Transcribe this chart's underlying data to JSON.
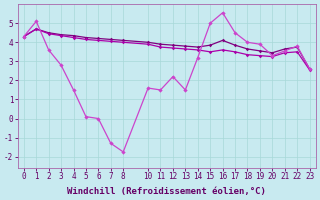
{
  "background_color": "#c8eaf0",
  "grid_color": "#a8d8d8",
  "line_color_upper1": "#800080",
  "line_color_upper2": "#aa00aa",
  "line_color_jagged": "#cc44cc",
  "xlabel": "Windchill (Refroidissement éolien,°C)",
  "xlabel_fontsize": 6.5,
  "tick_fontsize": 5.5,
  "ylim": [
    -2.6,
    6.0
  ],
  "xlim": [
    -0.5,
    23.5
  ],
  "yticks": [
    -2,
    -1,
    0,
    1,
    2,
    3,
    4,
    5
  ],
  "xticks": [
    0,
    1,
    2,
    3,
    4,
    5,
    6,
    7,
    8,
    10,
    11,
    12,
    13,
    14,
    15,
    16,
    17,
    18,
    19,
    20,
    21,
    22,
    23
  ],
  "series1_x": [
    0,
    1,
    2,
    3,
    4,
    5,
    6,
    7,
    8,
    10,
    11,
    12,
    13,
    14,
    15,
    16,
    17,
    18,
    19,
    20,
    21,
    22,
    23
  ],
  "series1_y": [
    4.3,
    4.7,
    4.5,
    4.4,
    4.35,
    4.25,
    4.2,
    4.15,
    4.1,
    4.0,
    3.9,
    3.85,
    3.8,
    3.75,
    3.85,
    4.1,
    3.85,
    3.65,
    3.55,
    3.45,
    3.65,
    3.75,
    2.6
  ],
  "series2_x": [
    0,
    1,
    2,
    3,
    4,
    5,
    6,
    7,
    8,
    10,
    11,
    12,
    13,
    14,
    15,
    16,
    17,
    18,
    19,
    20,
    21,
    22,
    23
  ],
  "series2_y": [
    4.3,
    4.7,
    4.45,
    4.35,
    4.25,
    4.15,
    4.1,
    4.05,
    4.0,
    3.9,
    3.75,
    3.7,
    3.65,
    3.6,
    3.5,
    3.6,
    3.5,
    3.35,
    3.3,
    3.25,
    3.45,
    3.5,
    2.55
  ],
  "series3_x": [
    0,
    1,
    2,
    3,
    4,
    5,
    6,
    7,
    8,
    10,
    11,
    12,
    13,
    14,
    15,
    16,
    17,
    18,
    19,
    20,
    21,
    22,
    23
  ],
  "series3_y": [
    4.3,
    5.1,
    3.6,
    2.8,
    1.5,
    0.1,
    0.0,
    -1.3,
    -1.75,
    1.6,
    1.5,
    2.2,
    1.5,
    3.2,
    5.0,
    5.55,
    4.5,
    4.0,
    3.9,
    3.3,
    3.55,
    3.8,
    2.6
  ]
}
